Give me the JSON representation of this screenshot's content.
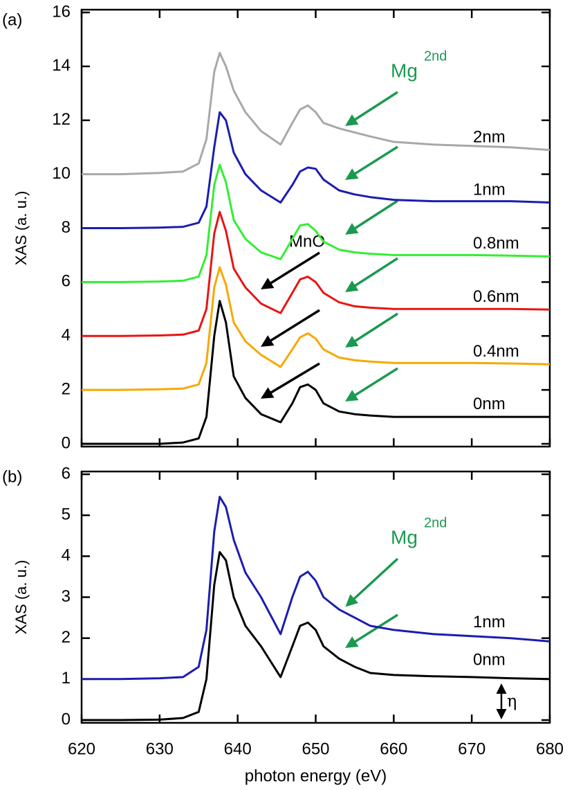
{
  "chart_data": [
    {
      "type": "line",
      "panel_label": "(a)",
      "y_label": "XAS (a. u.)",
      "xlim": [
        620,
        680
      ],
      "xticks": [
        620,
        630,
        640,
        650,
        660,
        670,
        680
      ],
      "ylim": [
        0,
        16
      ],
      "yticks": [
        0,
        2,
        4,
        6,
        8,
        10,
        12,
        14,
        16
      ],
      "annotations": {
        "mno": "MnO",
        "mg": "Mg",
        "mg_sup": "2nd"
      },
      "x": [
        620,
        625,
        630,
        633,
        635,
        636,
        637,
        637.7,
        638.5,
        639.5,
        641,
        643,
        645.5,
        647,
        648,
        649,
        650,
        651,
        653,
        655,
        657,
        660,
        665,
        670,
        675,
        680
      ],
      "series": [
        {
          "name": "2nm",
          "color": "#a8a8a8",
          "values": [
            10,
            10,
            10.05,
            10.1,
            10.4,
            11.3,
            13.8,
            14.5,
            14.0,
            13.1,
            12.3,
            11.6,
            11.1,
            11.9,
            12.4,
            12.55,
            12.3,
            11.9,
            11.7,
            11.55,
            11.4,
            11.2,
            11.1,
            11.05,
            11.0,
            10.9
          ]
        },
        {
          "name": "1nm",
          "color": "#1c1cb0",
          "values": [
            8,
            8,
            8.02,
            8.05,
            8.2,
            8.8,
            11.0,
            12.3,
            12.0,
            10.8,
            10.0,
            9.4,
            8.95,
            9.6,
            10.1,
            10.25,
            10.2,
            9.8,
            9.4,
            9.25,
            9.15,
            9.05,
            9.0,
            9.0,
            9.0,
            8.95
          ]
        },
        {
          "name": "0.8nm",
          "color": "#33ee33",
          "values": [
            6,
            6,
            6.02,
            6.05,
            6.2,
            7.0,
            9.6,
            10.35,
            9.7,
            8.3,
            7.6,
            7.1,
            6.85,
            7.6,
            8.1,
            8.15,
            7.9,
            7.5,
            7.2,
            7.1,
            7.05,
            7.0,
            7.0,
            7.0,
            6.98,
            6.95
          ]
        },
        {
          "name": "0.6nm",
          "color": "#e81414",
          "values": [
            4,
            4,
            4.02,
            4.05,
            4.2,
            5.0,
            7.8,
            8.6,
            7.9,
            6.5,
            5.8,
            5.2,
            4.85,
            5.6,
            6.1,
            6.2,
            6.0,
            5.6,
            5.25,
            5.1,
            5.05,
            5.0,
            5.0,
            5.0,
            5.0,
            4.98
          ]
        },
        {
          "name": "0.4nm",
          "color": "#f8a800",
          "values": [
            2,
            2,
            2.02,
            2.05,
            2.2,
            3.0,
            5.8,
            6.55,
            5.9,
            4.5,
            3.8,
            3.3,
            2.85,
            3.5,
            3.95,
            4.1,
            3.9,
            3.5,
            3.2,
            3.1,
            3.05,
            3.0,
            3.0,
            3.0,
            2.98,
            2.95
          ]
        },
        {
          "name": "0nm",
          "color": "#000000",
          "values": [
            0,
            0,
            0,
            0.05,
            0.2,
            1.0,
            4.0,
            5.3,
            4.5,
            2.5,
            1.7,
            1.1,
            0.8,
            1.5,
            2.1,
            2.2,
            2.0,
            1.5,
            1.2,
            1.1,
            1.05,
            1.0,
            1.0,
            1.0,
            1.0,
            1.0
          ]
        }
      ]
    },
    {
      "type": "line",
      "panel_label": "(b)",
      "y_label": "XAS (a. u.)",
      "x_label": "photon energy (eV)",
      "xlim": [
        620,
        680
      ],
      "xticks": [
        620,
        630,
        640,
        650,
        660,
        670,
        680
      ],
      "ylim": [
        0,
        6
      ],
      "yticks": [
        0,
        1,
        2,
        3,
        4,
        5,
        6
      ],
      "annotations": {
        "mg": "Mg",
        "mg_sup": "2nd",
        "eta": "η"
      },
      "x": [
        620,
        625,
        630,
        633,
        635,
        636,
        637,
        637.7,
        638.5,
        639.5,
        641,
        643,
        645.5,
        647,
        648,
        649,
        650,
        651,
        653,
        655,
        657,
        660,
        665,
        670,
        675,
        680
      ],
      "series": [
        {
          "name": "1nm",
          "color": "#1c1cb0",
          "values": [
            1,
            1,
            1.02,
            1.05,
            1.3,
            2.2,
            4.6,
            5.45,
            5.2,
            4.4,
            3.6,
            3.0,
            2.1,
            3.0,
            3.5,
            3.62,
            3.4,
            3.0,
            2.7,
            2.5,
            2.3,
            2.2,
            2.1,
            2.05,
            2.0,
            1.92
          ]
        },
        {
          "name": "0nm",
          "color": "#000000",
          "values": [
            0,
            0,
            0.01,
            0.05,
            0.2,
            1.0,
            3.3,
            4.1,
            3.9,
            3.0,
            2.3,
            1.8,
            1.05,
            1.8,
            2.3,
            2.38,
            2.2,
            1.8,
            1.5,
            1.3,
            1.15,
            1.1,
            1.07,
            1.05,
            1.02,
            1.0
          ]
        }
      ]
    }
  ]
}
